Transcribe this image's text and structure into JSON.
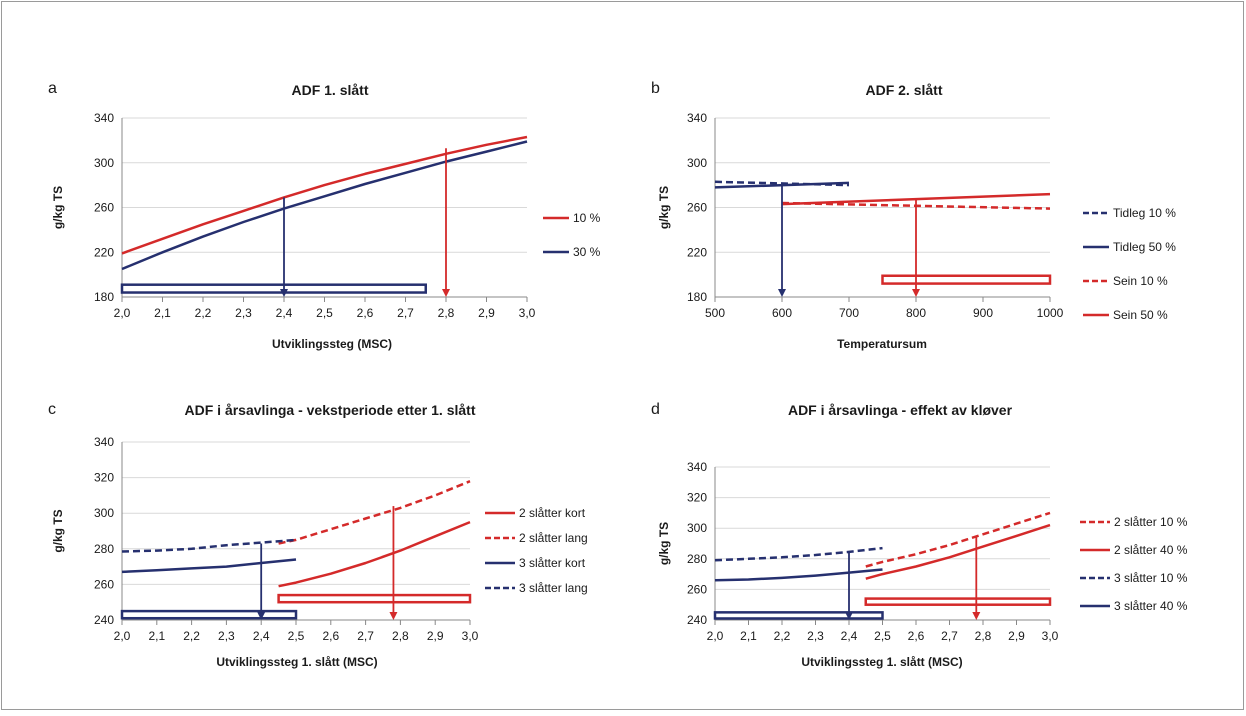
{
  "colors": {
    "red": "#d42a2a",
    "navy": "#26306f",
    "grid": "#d9d9d9",
    "axis": "#888888",
    "text": "#1a1a1a"
  },
  "panels": [
    {
      "letter": "a",
      "chart_data": {
        "type": "line",
        "title": "ADF 1. slått",
        "xlabel": "Utviklingssteg (MSC)",
        "ylabel": "g/kg TS",
        "xlim": [
          2.0,
          3.0
        ],
        "ylim": [
          180,
          340
        ],
        "xticks": [
          2.0,
          2.1,
          2.2,
          2.3,
          2.4,
          2.5,
          2.6,
          2.7,
          2.8,
          2.9,
          3.0
        ],
        "xtick_labels": [
          "2,0",
          "2,1",
          "2,2",
          "2,3",
          "2,4",
          "2,5",
          "2,6",
          "2,7",
          "2,8",
          "2,9",
          "3,0"
        ],
        "yticks": [
          180,
          220,
          260,
          300,
          340
        ],
        "grid": true,
        "legend_position": "right",
        "series": [
          {
            "name": "10 %",
            "color": "red",
            "dash": false,
            "x": [
              2.0,
              2.1,
              2.2,
              2.3,
              2.4,
              2.5,
              2.6,
              2.7,
              2.8,
              2.9,
              3.0
            ],
            "y": [
              219,
              232,
              245,
              257,
              269,
              280,
              290,
              299,
              308,
              316,
              323
            ]
          },
          {
            "name": "30 %",
            "color": "navy",
            "dash": false,
            "x": [
              2.0,
              2.1,
              2.2,
              2.3,
              2.4,
              2.5,
              2.6,
              2.7,
              2.8,
              2.9,
              3.0
            ],
            "y": [
              205,
              220,
              234,
              247,
              259,
              270,
              281,
              291,
              301,
              310,
              319
            ]
          }
        ],
        "arrows": [
          {
            "color": "navy",
            "x": 2.4,
            "y_from": 269,
            "y_to": 180
          },
          {
            "color": "red",
            "x": 2.8,
            "y_from": 313,
            "y_to": 180
          }
        ],
        "boxes": [
          {
            "color": "navy",
            "x0": 2.0,
            "x1": 2.75,
            "y0": 184,
            "y1": 191
          }
        ]
      }
    },
    {
      "letter": "b",
      "chart_data": {
        "type": "line",
        "title": "ADF 2. slått",
        "xlabel": "Temperatursum",
        "ylabel": "g/kg TS",
        "xlim": [
          500,
          1000
        ],
        "ylim": [
          180,
          340
        ],
        "xticks": [
          500,
          600,
          700,
          800,
          900,
          1000
        ],
        "xtick_labels": [
          "500",
          "600",
          "700",
          "800",
          "900",
          "1000"
        ],
        "yticks": [
          180,
          220,
          260,
          300,
          340
        ],
        "grid": true,
        "legend_position": "right",
        "series": [
          {
            "name": "Tidleg 10 %",
            "color": "navy",
            "dash": true,
            "x": [
              500,
              700
            ],
            "y": [
              283,
              280
            ]
          },
          {
            "name": "Tidleg 50 %",
            "color": "navy",
            "dash": false,
            "x": [
              500,
              700
            ],
            "y": [
              278,
              282
            ]
          },
          {
            "name": "Sein 10 %",
            "color": "red",
            "dash": true,
            "x": [
              600,
              1000
            ],
            "y": [
              264,
              259
            ]
          },
          {
            "name": "Sein 50 %",
            "color": "red",
            "dash": false,
            "x": [
              600,
              1000
            ],
            "y": [
              263,
              272
            ]
          }
        ],
        "arrows": [
          {
            "color": "navy",
            "x": 600,
            "y_from": 281,
            "y_to": 180
          },
          {
            "color": "red",
            "x": 800,
            "y_from": 267,
            "y_to": 180
          }
        ],
        "boxes": [
          {
            "color": "red",
            "x0": 750,
            "x1": 1000,
            "y0": 192,
            "y1": 199
          }
        ]
      }
    },
    {
      "letter": "c",
      "chart_data": {
        "type": "line",
        "title": "ADF i årsavlinga - vekstperiode etter 1. slått",
        "xlabel": "Utviklingssteg 1. slått (MSC)",
        "ylabel": "g/kg TS",
        "xlim": [
          2.0,
          3.0
        ],
        "ylim": [
          240,
          340
        ],
        "xticks": [
          2.0,
          2.1,
          2.2,
          2.3,
          2.4,
          2.5,
          2.6,
          2.7,
          2.8,
          2.9,
          3.0
        ],
        "xtick_labels": [
          "2,0",
          "2,1",
          "2,2",
          "2,3",
          "2,4",
          "2,5",
          "2,6",
          "2,7",
          "2,8",
          "2,9",
          "3,0"
        ],
        "yticks": [
          240,
          260,
          280,
          300,
          320,
          340
        ],
        "grid": true,
        "legend_position": "right",
        "series": [
          {
            "name": "2 slåtter kort",
            "color": "red",
            "dash": false,
            "x": [
              2.45,
              2.5,
              2.6,
              2.7,
              2.8,
              2.9,
              3.0
            ],
            "y": [
              259,
              261,
              266,
              272,
              279,
              287,
              295
            ]
          },
          {
            "name": "2 slåtter lang",
            "color": "red",
            "dash": true,
            "x": [
              2.45,
              2.5,
              2.6,
              2.7,
              2.8,
              2.9,
              3.0
            ],
            "y": [
              283,
              285,
              291,
              297,
              303,
              310,
              318
            ]
          },
          {
            "name": "3 slåtter kort",
            "color": "navy",
            "dash": false,
            "x": [
              2.0,
              2.1,
              2.2,
              2.3,
              2.4,
              2.5
            ],
            "y": [
              267,
              268,
              269,
              270,
              272,
              274
            ]
          },
          {
            "name": "3 slåtter lang",
            "color": "navy",
            "dash": true,
            "x": [
              2.0,
              2.1,
              2.2,
              2.3,
              2.4,
              2.5
            ],
            "y": [
              278.5,
              279,
              280,
              282,
              283.5,
              285
            ]
          }
        ],
        "arrows": [
          {
            "color": "navy",
            "x": 2.4,
            "y_from": 283,
            "y_to": 240
          },
          {
            "color": "red",
            "x": 2.78,
            "y_from": 304,
            "y_to": 240
          }
        ],
        "boxes": [
          {
            "color": "navy",
            "x0": 2.0,
            "x1": 2.5,
            "y0": 241,
            "y1": 245
          },
          {
            "color": "red",
            "x0": 2.45,
            "x1": 3.0,
            "y0": 250,
            "y1": 254
          }
        ]
      }
    },
    {
      "letter": "d",
      "chart_data": {
        "type": "line",
        "title": "ADF i årsavlinga - effekt av kløver",
        "xlabel": "Utviklingssteg 1. slått (MSC)",
        "ylabel": "g/kg TS",
        "xlim": [
          2.0,
          3.0
        ],
        "ylim": [
          240,
          340
        ],
        "xticks": [
          2.0,
          2.1,
          2.2,
          2.3,
          2.4,
          2.5,
          2.6,
          2.7,
          2.8,
          2.9,
          3.0
        ],
        "xtick_labels": [
          "2,0",
          "2,1",
          "2,2",
          "2,3",
          "2,4",
          "2,5",
          "2,6",
          "2,7",
          "2,8",
          "2,9",
          "3,0"
        ],
        "yticks": [
          240,
          260,
          280,
          300,
          320,
          340
        ],
        "grid": true,
        "legend_position": "right",
        "series": [
          {
            "name": "2 slåtter 10 %",
            "color": "red",
            "dash": true,
            "x": [
              2.45,
              2.5,
              2.6,
              2.7,
              2.8,
              2.9,
              3.0
            ],
            "y": [
              275,
              278,
              283,
              289,
              296,
              303,
              310
            ]
          },
          {
            "name": "2 slåtter 40 %",
            "color": "red",
            "dash": false,
            "x": [
              2.45,
              2.5,
              2.6,
              2.7,
              2.8,
              2.9,
              3.0
            ],
            "y": [
              267,
              270,
              275,
              281,
              288,
              295,
              302
            ]
          },
          {
            "name": "3 slåtter 10 %",
            "color": "navy",
            "dash": true,
            "x": [
              2.0,
              2.1,
              2.2,
              2.3,
              2.4,
              2.5
            ],
            "y": [
              279,
              280,
              281,
              282.5,
              284.5,
              287
            ]
          },
          {
            "name": "3 slåtter 40 %",
            "color": "navy",
            "dash": false,
            "x": [
              2.0,
              2.1,
              2.2,
              2.3,
              2.4,
              2.5
            ],
            "y": [
              266,
              266.5,
              267.5,
              269,
              271,
              273
            ]
          }
        ],
        "arrows": [
          {
            "color": "navy",
            "x": 2.4,
            "y_from": 285,
            "y_to": 240
          },
          {
            "color": "red",
            "x": 2.78,
            "y_from": 295,
            "y_to": 240
          }
        ],
        "boxes": [
          {
            "color": "navy",
            "x0": 2.0,
            "x1": 2.5,
            "y0": 241,
            "y1": 245
          },
          {
            "color": "red",
            "x0": 2.45,
            "x1": 3.0,
            "y0": 250,
            "y1": 254
          }
        ]
      }
    }
  ]
}
